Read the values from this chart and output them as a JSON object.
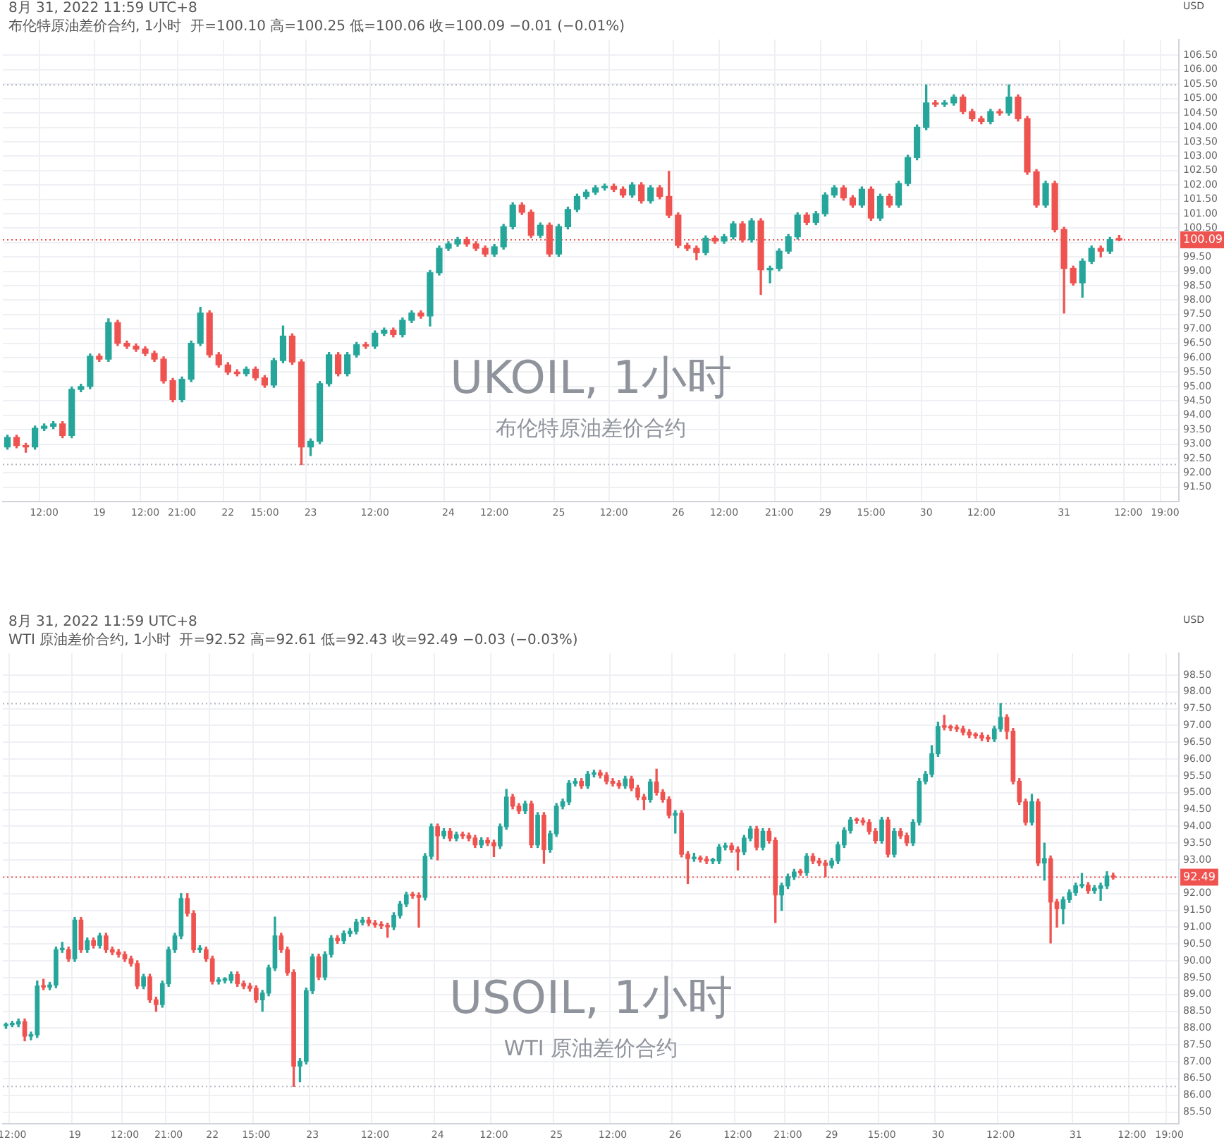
{
  "chart_data": [
    {
      "type": "candlestick",
      "title": "UKOIL, 1小时",
      "subtitle": "布伦特原油差价合约",
      "ylabel": "USD",
      "annotations": [
        "8月 31, 2022 11:59 UTC+8",
        "布伦特原油差价合约, 1小时  开=100.10 高=100.25 低=100.06 收=100.09 −0.01 (−0.01%)"
      ],
      "categories": [
        null,
        null,
        null,
        null,
        "12:00",
        null,
        null,
        null,
        null,
        null,
        "19",
        null,
        null,
        null,
        null,
        "12:00",
        null,
        null,
        null,
        "21:00",
        null,
        null,
        null,
        null,
        "22",
        null,
        null,
        null,
        "15:00",
        null,
        null,
        null,
        null,
        "23",
        null,
        null,
        null,
        null,
        null,
        null,
        "12:00",
        null,
        null,
        null,
        null,
        null,
        null,
        null,
        "24",
        null,
        null,
        null,
        null,
        "12:00",
        null,
        null,
        null,
        null,
        null,
        null,
        "25",
        null,
        null,
        null,
        null,
        null,
        "12:00",
        null,
        null,
        null,
        null,
        null,
        null,
        "26",
        null,
        null,
        null,
        null,
        "12:00",
        null,
        null,
        null,
        null,
        null,
        "21:00",
        null,
        null,
        null,
        null,
        "29",
        null,
        null,
        null,
        null,
        "15:00",
        null,
        null,
        null,
        null,
        null,
        "30",
        null,
        null,
        null,
        null,
        null,
        "12:00",
        null,
        null,
        null,
        null,
        null,
        null,
        null,
        null,
        "31",
        null,
        null,
        null,
        null,
        null,
        null,
        "12:00",
        null,
        null,
        null,
        "19:00",
        null
      ],
      "ohlc": [
        [
          92.9,
          93.31,
          92.82,
          93.23
        ],
        [
          93.23,
          93.31,
          92.87,
          92.95
        ],
        [
          92.95,
          93.03,
          92.72,
          92.9
        ],
        [
          92.9,
          93.63,
          92.82,
          93.55
        ],
        [
          93.55,
          93.7,
          93.47,
          93.62
        ],
        [
          93.62,
          93.78,
          93.54,
          93.7
        ],
        [
          93.7,
          93.78,
          93.22,
          93.3
        ],
        [
          93.3,
          94.98,
          93.22,
          94.9
        ],
        [
          94.9,
          95.08,
          94.82,
          95.0
        ],
        [
          95.0,
          96.13,
          94.92,
          96.05
        ],
        [
          96.05,
          96.13,
          95.87,
          95.95
        ],
        [
          95.95,
          97.35,
          95.87,
          97.22
        ],
        [
          97.22,
          97.3,
          96.42,
          96.5
        ],
        [
          96.5,
          96.58,
          96.32,
          96.4
        ],
        [
          96.4,
          96.48,
          96.22,
          96.3
        ],
        [
          96.3,
          96.38,
          96.07,
          96.15
        ],
        [
          96.15,
          96.23,
          95.87,
          95.95
        ],
        [
          95.95,
          96.03,
          95.12,
          95.2
        ],
        [
          95.2,
          95.28,
          94.47,
          94.55
        ],
        [
          94.55,
          95.33,
          94.47,
          95.25
        ],
        [
          95.25,
          96.58,
          95.17,
          96.5
        ],
        [
          96.5,
          97.75,
          96.42,
          97.55
        ],
        [
          97.55,
          97.63,
          96.02,
          96.1
        ],
        [
          96.1,
          96.18,
          95.67,
          95.75
        ],
        [
          95.75,
          95.83,
          95.42,
          95.5
        ],
        [
          95.5,
          95.58,
          95.37,
          95.45
        ],
        [
          95.45,
          95.68,
          95.37,
          95.6
        ],
        [
          95.6,
          95.68,
          95.22,
          95.3
        ],
        [
          95.3,
          95.38,
          94.97,
          95.05
        ],
        [
          95.05,
          95.98,
          94.97,
          95.9
        ],
        [
          95.9,
          97.1,
          95.82,
          96.75
        ],
        [
          96.75,
          96.83,
          95.77,
          95.85
        ],
        [
          95.85,
          95.93,
          92.29,
          92.9
        ],
        [
          92.9,
          93.18,
          92.6,
          93.1
        ],
        [
          93.1,
          95.18,
          93.02,
          95.1
        ],
        [
          95.1,
          96.18,
          95.02,
          96.1
        ],
        [
          96.1,
          96.18,
          95.37,
          95.45
        ],
        [
          95.45,
          96.18,
          95.37,
          96.1
        ],
        [
          96.1,
          96.53,
          96.02,
          96.45
        ],
        [
          96.45,
          96.53,
          96.32,
          96.4
        ],
        [
          96.4,
          96.93,
          96.32,
          96.85
        ],
        [
          96.85,
          97.03,
          96.77,
          96.95
        ],
        [
          96.95,
          97.03,
          96.72,
          96.8
        ],
        [
          96.8,
          97.38,
          96.72,
          97.3
        ],
        [
          97.3,
          97.63,
          97.22,
          97.55
        ],
        [
          97.55,
          97.63,
          97.37,
          97.45
        ],
        [
          97.45,
          99.03,
          97.1,
          98.95
        ],
        [
          98.95,
          99.88,
          98.87,
          99.8
        ],
        [
          99.8,
          100.03,
          99.72,
          99.95
        ],
        [
          99.95,
          100.18,
          99.87,
          100.1
        ],
        [
          100.1,
          100.18,
          99.87,
          99.95
        ],
        [
          99.95,
          100.03,
          99.72,
          99.8
        ],
        [
          99.8,
          99.88,
          99.52,
          99.6
        ],
        [
          99.6,
          99.93,
          99.52,
          99.85
        ],
        [
          99.85,
          100.63,
          99.77,
          100.55
        ],
        [
          100.55,
          101.38,
          100.47,
          101.3
        ],
        [
          101.3,
          101.38,
          100.97,
          101.05
        ],
        [
          101.05,
          101.13,
          100.17,
          100.25
        ],
        [
          100.25,
          100.68,
          100.17,
          100.6
        ],
        [
          100.6,
          100.68,
          99.52,
          99.6
        ],
        [
          99.6,
          100.63,
          99.52,
          100.55
        ],
        [
          100.55,
          101.23,
          100.47,
          101.15
        ],
        [
          101.15,
          101.68,
          101.07,
          101.6
        ],
        [
          101.6,
          101.83,
          101.52,
          101.75
        ],
        [
          101.75,
          101.98,
          101.67,
          101.9
        ],
        [
          101.9,
          102.03,
          101.82,
          101.95
        ],
        [
          101.95,
          102.03,
          101.77,
          101.85
        ],
        [
          101.85,
          101.93,
          101.57,
          101.65
        ],
        [
          101.65,
          102.08,
          101.57,
          102.0
        ],
        [
          102.0,
          102.08,
          101.37,
          101.45
        ],
        [
          101.45,
          101.98,
          101.37,
          101.9
        ],
        [
          101.9,
          101.98,
          101.52,
          101.6
        ],
        [
          101.6,
          102.47,
          100.87,
          100.95
        ],
        [
          100.95,
          101.03,
          99.82,
          99.9
        ],
        [
          99.9,
          99.98,
          99.72,
          99.8
        ],
        [
          99.8,
          99.88,
          99.4,
          99.65
        ],
        [
          99.65,
          100.23,
          99.57,
          100.15
        ],
        [
          100.15,
          100.23,
          99.97,
          100.05
        ],
        [
          100.05,
          100.28,
          99.97,
          100.2
        ],
        [
          100.2,
          100.73,
          100.12,
          100.65
        ],
        [
          100.65,
          100.73,
          100.02,
          100.1
        ],
        [
          100.1,
          100.83,
          100.02,
          100.75
        ],
        [
          100.75,
          100.83,
          98.2,
          99.05
        ],
        [
          99.05,
          99.18,
          98.6,
          99.1
        ],
        [
          99.1,
          99.78,
          99.02,
          99.7
        ],
        [
          99.7,
          100.28,
          99.62,
          100.2
        ],
        [
          100.2,
          101.03,
          100.12,
          100.95
        ],
        [
          100.95,
          101.03,
          100.62,
          100.7
        ],
        [
          100.7,
          101.08,
          100.62,
          101.0
        ],
        [
          101.0,
          101.73,
          100.92,
          101.65
        ],
        [
          101.65,
          101.98,
          101.57,
          101.9
        ],
        [
          101.9,
          101.98,
          101.47,
          101.55
        ],
        [
          101.55,
          101.63,
          101.22,
          101.3
        ],
        [
          101.3,
          101.93,
          101.22,
          101.85
        ],
        [
          101.85,
          101.93,
          100.77,
          100.85
        ],
        [
          100.85,
          101.68,
          100.77,
          101.6
        ],
        [
          101.6,
          101.68,
          101.22,
          101.3
        ],
        [
          101.3,
          102.13,
          101.22,
          102.05
        ],
        [
          102.05,
          103.03,
          101.97,
          102.95
        ],
        [
          102.95,
          104.08,
          102.87,
          104.0
        ],
        [
          104.0,
          105.47,
          103.92,
          104.85
        ],
        [
          104.85,
          104.93,
          104.72,
          104.8
        ],
        [
          104.8,
          104.93,
          104.72,
          104.85
        ],
        [
          104.85,
          105.13,
          104.77,
          105.05
        ],
        [
          105.05,
          105.13,
          104.47,
          104.55
        ],
        [
          104.55,
          104.63,
          104.22,
          104.3
        ],
        [
          104.3,
          104.38,
          104.12,
          104.2
        ],
        [
          104.2,
          104.63,
          104.12,
          104.55
        ],
        [
          104.55,
          104.63,
          104.42,
          104.5
        ],
        [
          104.5,
          105.47,
          104.42,
          105.05
        ],
        [
          105.05,
          105.13,
          104.22,
          104.3
        ],
        [
          104.3,
          104.38,
          102.37,
          102.45
        ],
        [
          102.45,
          102.53,
          101.22,
          101.3
        ],
        [
          101.3,
          102.13,
          101.22,
          102.05
        ],
        [
          102.05,
          102.13,
          100.37,
          100.45
        ],
        [
          100.45,
          100.53,
          97.55,
          99.1
        ],
        [
          99.1,
          99.18,
          98.52,
          98.6
        ],
        [
          98.6,
          99.43,
          98.1,
          99.35
        ],
        [
          99.35,
          99.88,
          99.27,
          99.8
        ],
        [
          99.8,
          99.88,
          99.5,
          99.7
        ],
        [
          99.7,
          100.18,
          99.62,
          100.1
        ],
        [
          100.1,
          100.25,
          100.06,
          100.09
        ],
        null,
        null,
        null,
        null,
        null,
        null
      ],
      "ylim": [
        91.0,
        107.05
      ],
      "yticks": [
        {
          "value": 91.5,
          "label": "91.50"
        },
        {
          "value": 92,
          "label": "92.00"
        },
        {
          "value": 92.5,
          "label": "92.50"
        },
        {
          "value": 93,
          "label": "93.00"
        },
        {
          "value": 93.5,
          "label": "93.50"
        },
        {
          "value": 94,
          "label": "94.00"
        },
        {
          "value": 94.5,
          "label": "94.50"
        },
        {
          "value": 95,
          "label": "95.00"
        },
        {
          "value": 95.5,
          "label": "95.50"
        },
        {
          "value": 96,
          "label": "96.00"
        },
        {
          "value": 96.5,
          "label": "96.50"
        },
        {
          "value": 97,
          "label": "97.00"
        },
        {
          "value": 97.5,
          "label": "97.50"
        },
        {
          "value": 98,
          "label": "98.00"
        },
        {
          "value": 98.5,
          "label": "98.50"
        },
        {
          "value": 99,
          "label": "99.00"
        },
        {
          "value": 99.5,
          "label": "99.50"
        },
        {
          "value": 100,
          "label": null
        },
        {
          "value": 100.5,
          "label": "100.50"
        },
        {
          "value": 101,
          "label": "101.00"
        },
        {
          "value": 101.5,
          "label": "101.50"
        },
        {
          "value": 102,
          "label": "102.00"
        },
        {
          "value": 102.5,
          "label": "102.50"
        },
        {
          "value": 103,
          "label": "103.00"
        },
        {
          "value": 103.5,
          "label": "103.50"
        },
        {
          "value": 104,
          "label": "104.00"
        },
        {
          "value": 104.5,
          "label": "104.50"
        },
        {
          "value": 105,
          "label": "105.00"
        },
        {
          "value": 105.5,
          "label": "105.50"
        },
        {
          "value": 106,
          "label": "106.00"
        },
        {
          "value": 106.5,
          "label": "106.50"
        }
      ],
      "ref_lines": [
        {
          "axis": "y",
          "value": 100.09,
          "label": "100.09",
          "color": "#ef5350",
          "line_style": "dotted"
        },
        {
          "axis": "y",
          "value": 105.47,
          "color": "#b2b5be",
          "line_style": "dotted"
        },
        {
          "axis": "y",
          "value": 92.29,
          "color": "#b2b5be",
          "line_style": "dotted"
        }
      ],
      "grid": true
    },
    {
      "type": "candlestick",
      "title": "USOIL, 1小时",
      "subtitle": "WTI 原油差价合约",
      "ylabel": "USD",
      "annotations": [
        "8月 31, 2022 11:59 UTC+8",
        "WTI 原油差价合约, 1小时  开=92.52 高=92.61 低=92.43 收=92.49 −0.03 (−0.03%)"
      ],
      "categories": [
        null,
        "12:00",
        null,
        null,
        null,
        null,
        null,
        null,
        null,
        null,
        null,
        "19",
        null,
        null,
        null,
        null,
        null,
        null,
        null,
        "12:00",
        null,
        null,
        null,
        null,
        null,
        null,
        "21:00",
        null,
        null,
        null,
        null,
        null,
        null,
        "22",
        null,
        null,
        null,
        null,
        null,
        null,
        "15:00",
        null,
        null,
        null,
        null,
        null,
        null,
        null,
        null,
        "23",
        null,
        null,
        null,
        null,
        null,
        null,
        null,
        null,
        null,
        "12:00",
        null,
        null,
        null,
        null,
        null,
        null,
        null,
        null,
        null,
        "24",
        null,
        null,
        null,
        null,
        null,
        null,
        null,
        null,
        "12:00",
        null,
        null,
        null,
        null,
        null,
        null,
        null,
        null,
        null,
        "25",
        null,
        null,
        null,
        null,
        null,
        null,
        null,
        null,
        "12:00",
        null,
        null,
        null,
        null,
        null,
        null,
        null,
        null,
        null,
        "26",
        null,
        null,
        null,
        null,
        null,
        null,
        null,
        null,
        null,
        "12:00",
        null,
        null,
        null,
        null,
        null,
        null,
        null,
        "21:00",
        null,
        null,
        null,
        null,
        null,
        null,
        "29",
        null,
        null,
        null,
        null,
        null,
        null,
        null,
        "15:00",
        null,
        null,
        null,
        null,
        null,
        null,
        null,
        null,
        "30",
        null,
        null,
        null,
        null,
        null,
        null,
        null,
        null,
        null,
        "12:00",
        null,
        null,
        null,
        null,
        null,
        null,
        null,
        null,
        null,
        null,
        null,
        "31",
        null,
        null,
        null,
        null,
        null,
        null,
        null,
        null,
        "12:00",
        null,
        null,
        null,
        null,
        null,
        "19:00",
        null
      ],
      "ohlc": [
        [
          88.07,
          88.15,
          87.99,
          88.1
        ],
        [
          88.1,
          88.2,
          88.04,
          88.12
        ],
        [
          88.12,
          88.27,
          88.04,
          88.19
        ],
        [
          88.19,
          88.27,
          87.62,
          87.76
        ],
        [
          87.76,
          87.88,
          87.65,
          87.8
        ],
        [
          87.8,
          89.4,
          87.72,
          89.25
        ],
        [
          89.25,
          89.45,
          89.14,
          89.22
        ],
        [
          89.22,
          89.36,
          89.14,
          89.28
        ],
        [
          89.28,
          90.41,
          89.2,
          90.33
        ],
        [
          90.33,
          90.55,
          90.25,
          90.33
        ],
        [
          90.33,
          90.41,
          89.98,
          90.06
        ],
        [
          90.06,
          91.29,
          89.98,
          91.21
        ],
        [
          91.21,
          91.29,
          90.25,
          90.33
        ],
        [
          90.33,
          90.68,
          90.25,
          90.6
        ],
        [
          90.6,
          90.68,
          90.38,
          90.46
        ],
        [
          90.46,
          90.82,
          90.38,
          90.74
        ],
        [
          90.74,
          90.82,
          90.25,
          90.33
        ],
        [
          90.33,
          90.41,
          90.18,
          90.26
        ],
        [
          90.26,
          90.34,
          90.11,
          90.19
        ],
        [
          90.19,
          90.27,
          89.98,
          90.06
        ],
        [
          90.06,
          90.14,
          89.84,
          89.92
        ],
        [
          89.92,
          90.0,
          89.17,
          89.25
        ],
        [
          89.25,
          89.6,
          89.17,
          89.52
        ],
        [
          89.52,
          89.6,
          88.76,
          88.84
        ],
        [
          88.84,
          88.92,
          88.5,
          88.7
        ],
        [
          88.7,
          89.4,
          88.62,
          89.32
        ],
        [
          89.32,
          90.41,
          89.24,
          90.33
        ],
        [
          90.33,
          90.82,
          90.25,
          90.74
        ],
        [
          90.74,
          92.0,
          90.66,
          91.85
        ],
        [
          91.85,
          92.0,
          91.33,
          91.41
        ],
        [
          91.41,
          91.49,
          90.25,
          90.33
        ],
        [
          90.33,
          90.45,
          90.25,
          90.33
        ],
        [
          90.33,
          90.41,
          89.98,
          90.06
        ],
        [
          90.06,
          90.14,
          89.31,
          89.39
        ],
        [
          89.39,
          89.5,
          89.31,
          89.42
        ],
        [
          89.42,
          89.5,
          89.34,
          89.42
        ],
        [
          89.42,
          89.67,
          89.34,
          89.59
        ],
        [
          89.59,
          89.67,
          89.24,
          89.32
        ],
        [
          89.32,
          89.4,
          89.17,
          89.25
        ],
        [
          89.25,
          89.33,
          89.1,
          89.18
        ],
        [
          89.18,
          89.26,
          88.76,
          88.84
        ],
        [
          88.84,
          89.12,
          88.5,
          89.04
        ],
        [
          89.04,
          89.87,
          88.96,
          89.79
        ],
        [
          89.79,
          91.3,
          89.71,
          90.74
        ],
        [
          90.74,
          90.82,
          90.25,
          90.33
        ],
        [
          90.33,
          90.41,
          89.57,
          89.65
        ],
        [
          89.65,
          89.73,
          86.26,
          86.87
        ],
        [
          86.87,
          87.09,
          86.4,
          87.01
        ],
        [
          87.01,
          89.19,
          86.93,
          89.11
        ],
        [
          89.11,
          90.2,
          89.03,
          90.12
        ],
        [
          90.12,
          90.2,
          89.44,
          89.52
        ],
        [
          89.52,
          90.27,
          89.44,
          90.19
        ],
        [
          90.19,
          90.75,
          90.11,
          90.67
        ],
        [
          90.67,
          90.75,
          90.52,
          90.6
        ],
        [
          90.6,
          90.89,
          90.52,
          90.81
        ],
        [
          90.81,
          90.96,
          90.73,
          90.88
        ],
        [
          90.88,
          91.23,
          90.8,
          91.15
        ],
        [
          91.15,
          91.29,
          91.07,
          91.21
        ],
        [
          91.21,
          91.29,
          91.04,
          91.12
        ],
        [
          91.12,
          91.2,
          91.0,
          91.08
        ],
        [
          91.08,
          91.16,
          90.96,
          91.04
        ],
        [
          91.04,
          91.12,
          90.7,
          91.01
        ],
        [
          91.01,
          91.43,
          90.93,
          91.35
        ],
        [
          91.35,
          91.77,
          91.27,
          91.69
        ],
        [
          91.69,
          92.04,
          91.61,
          91.96
        ],
        [
          91.96,
          92.04,
          91.86,
          91.94
        ],
        [
          91.94,
          92.02,
          91.0,
          91.89
        ],
        [
          91.89,
          93.19,
          91.81,
          93.11
        ],
        [
          93.11,
          94.07,
          93.03,
          93.99
        ],
        [
          93.99,
          94.07,
          93.0,
          93.72
        ],
        [
          93.72,
          93.93,
          93.64,
          93.85
        ],
        [
          93.85,
          93.93,
          93.57,
          93.65
        ],
        [
          93.65,
          93.83,
          93.57,
          93.75
        ],
        [
          93.75,
          93.83,
          93.64,
          93.72
        ],
        [
          93.72,
          93.8,
          93.57,
          93.65
        ],
        [
          93.65,
          93.73,
          93.37,
          93.45
        ],
        [
          93.45,
          93.66,
          93.37,
          93.58
        ],
        [
          93.58,
          93.66,
          93.43,
          93.51
        ],
        [
          93.51,
          93.59,
          93.1,
          93.42
        ],
        [
          93.42,
          94.07,
          93.34,
          93.99
        ],
        [
          93.99,
          95.1,
          93.91,
          94.87
        ],
        [
          94.87,
          94.95,
          94.52,
          94.6
        ],
        [
          94.6,
          94.68,
          94.38,
          94.46
        ],
        [
          94.46,
          94.75,
          94.38,
          94.67
        ],
        [
          94.67,
          94.75,
          93.37,
          93.45
        ],
        [
          93.45,
          94.41,
          93.37,
          94.33
        ],
        [
          94.33,
          94.41,
          92.9,
          93.31
        ],
        [
          93.31,
          93.86,
          93.23,
          93.78
        ],
        [
          93.78,
          94.68,
          93.7,
          94.6
        ],
        [
          94.6,
          94.81,
          94.52,
          94.73
        ],
        [
          94.73,
          95.36,
          94.65,
          95.28
        ],
        [
          95.28,
          95.42,
          95.2,
          95.34
        ],
        [
          95.34,
          95.42,
          95.13,
          95.21
        ],
        [
          95.21,
          95.63,
          95.13,
          95.55
        ],
        [
          95.55,
          95.67,
          95.47,
          95.59
        ],
        [
          95.59,
          95.67,
          95.44,
          95.52
        ],
        [
          95.52,
          95.6,
          95.26,
          95.34
        ],
        [
          95.34,
          95.42,
          95.2,
          95.28
        ],
        [
          95.28,
          95.36,
          95.13,
          95.21
        ],
        [
          95.21,
          95.49,
          95.13,
          95.41
        ],
        [
          95.41,
          95.49,
          95.06,
          95.14
        ],
        [
          95.14,
          95.22,
          94.79,
          94.87
        ],
        [
          94.87,
          94.95,
          94.5,
          94.8
        ],
        [
          94.8,
          95.4,
          94.72,
          95.32
        ],
        [
          95.32,
          95.7,
          94.93,
          95.01
        ],
        [
          95.01,
          95.09,
          94.72,
          94.8
        ],
        [
          94.8,
          94.88,
          94.25,
          94.33
        ],
        [
          94.33,
          94.47,
          93.8,
          94.39
        ],
        [
          94.39,
          94.47,
          93.09,
          93.17
        ],
        [
          93.17,
          93.25,
          92.3,
          93.04
        ],
        [
          93.04,
          93.2,
          92.96,
          93.04
        ],
        [
          93.04,
          93.12,
          92.94,
          93.02
        ],
        [
          93.02,
          93.1,
          92.89,
          92.97
        ],
        [
          92.97,
          93.05,
          92.89,
          92.97
        ],
        [
          92.97,
          93.46,
          92.89,
          93.38
        ],
        [
          93.38,
          93.5,
          93.3,
          93.42
        ],
        [
          93.42,
          93.5,
          93.23,
          93.31
        ],
        [
          93.31,
          93.39,
          92.7,
          93.24
        ],
        [
          93.24,
          93.73,
          93.16,
          93.65
        ],
        [
          93.65,
          94.0,
          93.57,
          93.92
        ],
        [
          93.92,
          94.0,
          93.3,
          93.38
        ],
        [
          93.38,
          93.93,
          93.3,
          93.85
        ],
        [
          93.85,
          93.93,
          93.5,
          93.58
        ],
        [
          93.58,
          93.66,
          91.14,
          91.96
        ],
        [
          91.96,
          92.31,
          91.5,
          92.23
        ],
        [
          92.23,
          92.58,
          92.15,
          92.5
        ],
        [
          92.5,
          92.72,
          92.42,
          92.64
        ],
        [
          92.64,
          92.72,
          92.54,
          92.62
        ],
        [
          92.62,
          93.19,
          92.54,
          93.11
        ],
        [
          93.11,
          93.19,
          92.89,
          92.97
        ],
        [
          92.97,
          93.05,
          92.83,
          92.91
        ],
        [
          92.91,
          92.99,
          92.5,
          92.84
        ],
        [
          92.84,
          93.05,
          92.76,
          92.97
        ],
        [
          92.97,
          93.53,
          92.89,
          93.45
        ],
        [
          93.45,
          93.96,
          93.37,
          93.88
        ],
        [
          93.88,
          94.27,
          93.8,
          94.19
        ],
        [
          94.19,
          94.25,
          94.09,
          94.17
        ],
        [
          94.17,
          94.25,
          94.04,
          94.12
        ],
        [
          94.12,
          94.2,
          93.77,
          93.85
        ],
        [
          93.85,
          93.93,
          93.5,
          93.58
        ],
        [
          93.58,
          94.27,
          93.5,
          94.19
        ],
        [
          94.19,
          94.27,
          93.09,
          93.17
        ],
        [
          93.17,
          93.93,
          93.09,
          93.85
        ],
        [
          93.85,
          93.93,
          93.64,
          93.72
        ],
        [
          93.72,
          93.8,
          93.43,
          93.51
        ],
        [
          93.51,
          94.2,
          93.43,
          94.12
        ],
        [
          94.12,
          95.42,
          94.04,
          95.34
        ],
        [
          95.34,
          95.63,
          95.26,
          95.55
        ],
        [
          95.55,
          96.4,
          95.47,
          96.16
        ],
        [
          96.16,
          97.1,
          96.08,
          96.97
        ],
        [
          96.97,
          97.3,
          96.87,
          96.95
        ],
        [
          96.95,
          97.01,
          96.85,
          96.93
        ],
        [
          96.93,
          97.01,
          96.82,
          96.9
        ],
        [
          96.9,
          96.98,
          96.72,
          96.8
        ],
        [
          96.8,
          96.88,
          96.64,
          96.72
        ],
        [
          96.72,
          96.78,
          96.62,
          96.7
        ],
        [
          96.7,
          96.78,
          96.55,
          96.63
        ],
        [
          96.63,
          96.71,
          96.52,
          96.6
        ],
        [
          96.6,
          96.98,
          96.52,
          96.9
        ],
        [
          96.9,
          97.65,
          96.82,
          97.24
        ],
        [
          97.24,
          97.32,
          96.6,
          96.83
        ],
        [
          96.83,
          96.91,
          95.26,
          95.34
        ],
        [
          95.34,
          95.42,
          94.65,
          94.73
        ],
        [
          94.73,
          94.81,
          94.04,
          94.12
        ],
        [
          94.12,
          94.95,
          94.04,
          94.73
        ],
        [
          94.73,
          94.81,
          92.83,
          92.91
        ],
        [
          92.91,
          93.5,
          92.4,
          93.04
        ],
        [
          93.04,
          93.12,
          90.53,
          91.75
        ],
        [
          91.75,
          91.83,
          91.0,
          91.55
        ],
        [
          91.55,
          91.9,
          91.1,
          91.82
        ],
        [
          91.82,
          92.11,
          91.74,
          92.03
        ],
        [
          92.03,
          92.31,
          91.95,
          92.23
        ],
        [
          92.23,
          92.6,
          92.17,
          92.25
        ],
        [
          92.25,
          92.33,
          92.01,
          92.09
        ],
        [
          92.09,
          92.24,
          92.01,
          92.16
        ],
        [
          92.16,
          92.31,
          91.8,
          92.23
        ],
        [
          92.23,
          92.65,
          92.15,
          92.52
        ],
        [
          92.52,
          92.61,
          92.43,
          92.49
        ],
        null,
        null,
        null,
        null,
        null,
        null,
        null,
        null,
        null,
        null
      ],
      "ylim": [
        85.15,
        99.15
      ],
      "yticks": [
        {
          "value": 85.5,
          "label": "85.50"
        },
        {
          "value": 86,
          "label": "86.00"
        },
        {
          "value": 86.5,
          "label": "86.50"
        },
        {
          "value": 87,
          "label": "87.00"
        },
        {
          "value": 87.5,
          "label": "87.50"
        },
        {
          "value": 88,
          "label": "88.00"
        },
        {
          "value": 88.5,
          "label": "88.50"
        },
        {
          "value": 89,
          "label": "89.00"
        },
        {
          "value": 89.5,
          "label": "89.50"
        },
        {
          "value": 90,
          "label": "90.00"
        },
        {
          "value": 90.5,
          "label": "90.50"
        },
        {
          "value": 91,
          "label": "91.00"
        },
        {
          "value": 91.5,
          "label": "91.50"
        },
        {
          "value": 92,
          "label": "92.00"
        },
        {
          "value": 92.5,
          "label": null
        },
        {
          "value": 93,
          "label": "93.00"
        },
        {
          "value": 93.5,
          "label": "93.50"
        },
        {
          "value": 94,
          "label": "94.00"
        },
        {
          "value": 94.5,
          "label": "94.50"
        },
        {
          "value": 95,
          "label": "95.00"
        },
        {
          "value": 95.5,
          "label": "95.50"
        },
        {
          "value": 96,
          "label": "96.00"
        },
        {
          "value": 96.5,
          "label": "96.50"
        },
        {
          "value": 97,
          "label": "97.00"
        },
        {
          "value": 97.5,
          "label": "97.50"
        },
        {
          "value": 98,
          "label": "98.00"
        },
        {
          "value": 98.5,
          "label": "98.50"
        }
      ],
      "ref_lines": [
        {
          "axis": "y",
          "value": 92.49,
          "label": "92.49",
          "color": "#ef5350",
          "line_style": "dotted"
        },
        {
          "axis": "y",
          "value": 97.65,
          "color": "#b2b5be",
          "line_style": "dotted"
        },
        {
          "axis": "y",
          "value": 86.26,
          "color": "#b2b5be",
          "line_style": "dotted"
        }
      ],
      "grid": true
    }
  ]
}
